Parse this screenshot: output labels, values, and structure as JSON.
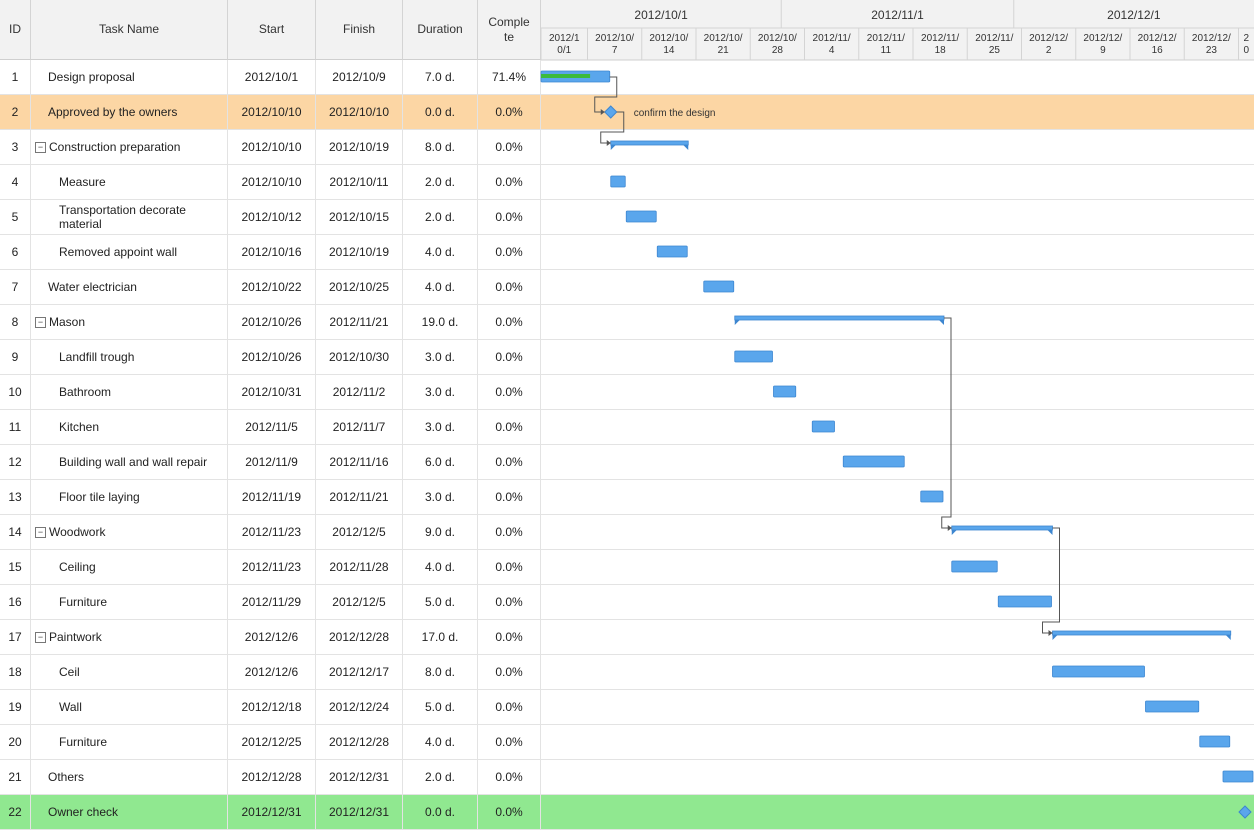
{
  "columns": {
    "id": "ID",
    "name": "Task Name",
    "start": "Start",
    "finish": "Finish",
    "duration": "Duration",
    "complete": "Comple te"
  },
  "timeline": {
    "months": [
      "2012/10/1",
      "2012/11/1",
      "2012/12/1"
    ],
    "weeks": [
      [
        "2012/1",
        "0/1"
      ],
      [
        "2012/10/",
        "7"
      ],
      [
        "2012/10/",
        "14"
      ],
      [
        "2012/10/",
        "21"
      ],
      [
        "2012/10/",
        "28"
      ],
      [
        "2012/11/",
        "4"
      ],
      [
        "2012/11/",
        "11"
      ],
      [
        "2012/11/",
        "18"
      ],
      [
        "2012/11/",
        "25"
      ],
      [
        "2012/12/",
        "2"
      ],
      [
        "2012/12/",
        "9"
      ],
      [
        "2012/12/",
        "16"
      ],
      [
        "2012/12/",
        "23"
      ],
      [
        "2",
        "0"
      ]
    ]
  },
  "colors": {
    "bar": "#5aa6ec",
    "bar_border": "#3d86d0",
    "progress": "#3cbb3c",
    "highlight_row": "#fcd6a4",
    "final_row": "#90e890",
    "header": "#f2f2f2"
  },
  "chart_data": {
    "type": "gantt",
    "x_range": [
      "2012/10/1",
      "2013/1/1"
    ],
    "milestone_annotation": "confirm the design",
    "tasks": [
      {
        "id": "1",
        "name": "Design proposal",
        "level": 0,
        "start": "2012/10/1",
        "finish": "2012/10/9",
        "duration": "7.0 d.",
        "complete": "71.4%",
        "kind": "task",
        "progress": 0.714,
        "row_style": "normal"
      },
      {
        "id": "2",
        "name": "Approved by the owners",
        "level": 0,
        "start": "2012/10/10",
        "finish": "2012/10/10",
        "duration": "0.0 d.",
        "complete": "0.0%",
        "kind": "milestone",
        "progress": 0,
        "row_style": "highlight"
      },
      {
        "id": "3",
        "name": "Construction preparation",
        "level": 0,
        "start": "2012/10/10",
        "finish": "2012/10/19",
        "duration": "8.0 d.",
        "complete": "0.0%",
        "kind": "summary",
        "progress": 0,
        "row_style": "normal"
      },
      {
        "id": "4",
        "name": "Measure",
        "level": 1,
        "start": "2012/10/10",
        "finish": "2012/10/11",
        "duration": "2.0 d.",
        "complete": "0.0%",
        "kind": "task",
        "progress": 0,
        "row_style": "normal"
      },
      {
        "id": "5",
        "name": "Transportation decorate material",
        "level": 1,
        "start": "2012/10/12",
        "finish": "2012/10/15",
        "duration": "2.0 d.",
        "complete": "0.0%",
        "kind": "task",
        "progress": 0,
        "row_style": "normal"
      },
      {
        "id": "6",
        "name": "Removed appoint wall",
        "level": 1,
        "start": "2012/10/16",
        "finish": "2012/10/19",
        "duration": "4.0 d.",
        "complete": "0.0%",
        "kind": "task",
        "progress": 0,
        "row_style": "normal"
      },
      {
        "id": "7",
        "name": "Water electrician",
        "level": 0,
        "start": "2012/10/22",
        "finish": "2012/10/25",
        "duration": "4.0 d.",
        "complete": "0.0%",
        "kind": "task",
        "progress": 0,
        "row_style": "normal"
      },
      {
        "id": "8",
        "name": "Mason",
        "level": 0,
        "start": "2012/10/26",
        "finish": "2012/11/21",
        "duration": "19.0 d.",
        "complete": "0.0%",
        "kind": "summary",
        "progress": 0,
        "row_style": "normal"
      },
      {
        "id": "9",
        "name": "Landfill trough",
        "level": 1,
        "start": "2012/10/26",
        "finish": "2012/10/30",
        "duration": "3.0 d.",
        "complete": "0.0%",
        "kind": "task",
        "progress": 0,
        "row_style": "normal"
      },
      {
        "id": "10",
        "name": "Bathroom",
        "level": 1,
        "start": "2012/10/31",
        "finish": "2012/11/2",
        "duration": "3.0 d.",
        "complete": "0.0%",
        "kind": "task",
        "progress": 0,
        "row_style": "normal"
      },
      {
        "id": "11",
        "name": "Kitchen",
        "level": 1,
        "start": "2012/11/5",
        "finish": "2012/11/7",
        "duration": "3.0 d.",
        "complete": "0.0%",
        "kind": "task",
        "progress": 0,
        "row_style": "normal"
      },
      {
        "id": "12",
        "name": "Building wall and wall repair",
        "level": 1,
        "start": "2012/11/9",
        "finish": "2012/11/16",
        "duration": "6.0 d.",
        "complete": "0.0%",
        "kind": "task",
        "progress": 0,
        "row_style": "normal"
      },
      {
        "id": "13",
        "name": "Floor tile laying",
        "level": 1,
        "start": "2012/11/19",
        "finish": "2012/11/21",
        "duration": "3.0 d.",
        "complete": "0.0%",
        "kind": "task",
        "progress": 0,
        "row_style": "normal"
      },
      {
        "id": "14",
        "name": "Woodwork",
        "level": 0,
        "start": "2012/11/23",
        "finish": "2012/12/5",
        "duration": "9.0 d.",
        "complete": "0.0%",
        "kind": "summary",
        "progress": 0,
        "row_style": "normal"
      },
      {
        "id": "15",
        "name": "Ceiling",
        "level": 1,
        "start": "2012/11/23",
        "finish": "2012/11/28",
        "duration": "4.0 d.",
        "complete": "0.0%",
        "kind": "task",
        "progress": 0,
        "row_style": "normal"
      },
      {
        "id": "16",
        "name": "Furniture",
        "level": 1,
        "start": "2012/11/29",
        "finish": "2012/12/5",
        "duration": "5.0 d.",
        "complete": "0.0%",
        "kind": "task",
        "progress": 0,
        "row_style": "normal"
      },
      {
        "id": "17",
        "name": "Paintwork",
        "level": 0,
        "start": "2012/12/6",
        "finish": "2012/12/28",
        "duration": "17.0 d.",
        "complete": "0.0%",
        "kind": "summary",
        "progress": 0,
        "row_style": "normal"
      },
      {
        "id": "18",
        "name": "Ceil",
        "level": 1,
        "start": "2012/12/6",
        "finish": "2012/12/17",
        "duration": "8.0 d.",
        "complete": "0.0%",
        "kind": "task",
        "progress": 0,
        "row_style": "normal"
      },
      {
        "id": "19",
        "name": "Wall",
        "level": 1,
        "start": "2012/12/18",
        "finish": "2012/12/24",
        "duration": "5.0 d.",
        "complete": "0.0%",
        "kind": "task",
        "progress": 0,
        "row_style": "normal"
      },
      {
        "id": "20",
        "name": "Furniture",
        "level": 1,
        "start": "2012/12/25",
        "finish": "2012/12/28",
        "duration": "4.0 d.",
        "complete": "0.0%",
        "kind": "task",
        "progress": 0,
        "row_style": "normal"
      },
      {
        "id": "21",
        "name": "Others",
        "level": 0,
        "start": "2012/12/28",
        "finish": "2012/12/31",
        "duration": "2.0 d.",
        "complete": "0.0%",
        "kind": "task",
        "progress": 0,
        "row_style": "normal"
      },
      {
        "id": "22",
        "name": "Owner check",
        "level": 0,
        "start": "2012/12/31",
        "finish": "2012/12/31",
        "duration": "0.0 d.",
        "complete": "0.0%",
        "kind": "milestone",
        "progress": 0,
        "row_style": "final"
      }
    ],
    "links": [
      {
        "from": "1",
        "to": "2"
      },
      {
        "from": "2",
        "to": "3"
      },
      {
        "from": "8",
        "to": "14"
      },
      {
        "from": "14",
        "to": "17"
      }
    ]
  }
}
